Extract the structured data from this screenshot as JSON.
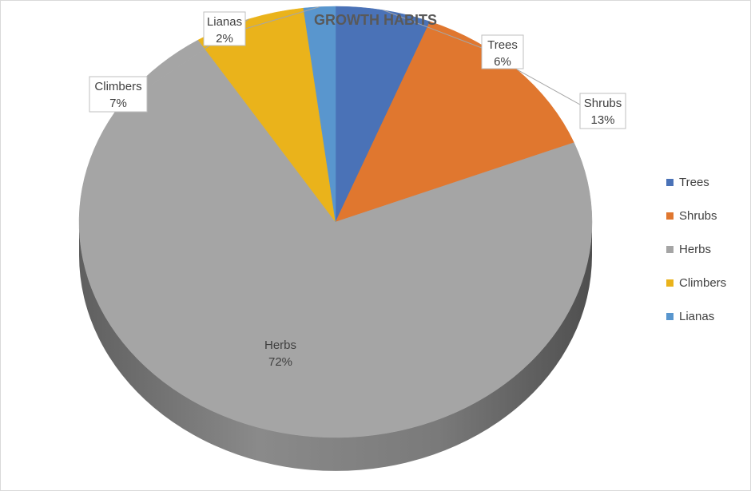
{
  "chart_data": {
    "type": "pie",
    "title": "GROWTH HABITS",
    "three_d": true,
    "start_angle_deg": 0,
    "direction": "clockwise",
    "legend_position": "right",
    "categories": [
      "Trees",
      "Shrubs",
      "Herbs",
      "Climbers",
      "Lianas"
    ],
    "values": [
      6,
      13,
      72,
      7,
      2
    ],
    "unit": "%",
    "data_labels": [
      "6%",
      "13%",
      "72%",
      "7%",
      "2%"
    ],
    "colors": [
      "#4a72b7",
      "#e0772f",
      "#a5a5a5",
      "#eab31b",
      "#5996ce"
    ]
  }
}
